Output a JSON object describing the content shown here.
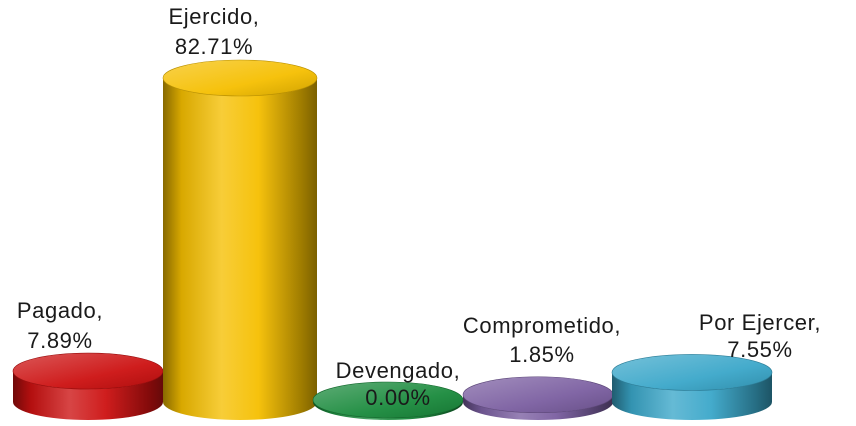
{
  "chart_data": {
    "type": "bar",
    "style": "3d-cylinder",
    "categories": [
      "Pagado",
      "Ejercido",
      "Devengado",
      "Comprometido",
      "Por Ejercer"
    ],
    "values": [
      7.89,
      82.71,
      0.0,
      1.85,
      7.55
    ],
    "data_labels": [
      {
        "name": "Pagado,",
        "value": "7.89%"
      },
      {
        "name": "Ejercido,",
        "value": "82.71%"
      },
      {
        "name": "Devengado,",
        "value": "0.00%"
      },
      {
        "name": "Comprometido,",
        "value": "1.85%"
      },
      {
        "name": "Por Ejercer,",
        "value": "7.55%"
      }
    ],
    "colors": [
      "#cc1111",
      "#f5bf00",
      "#1a8a3c",
      "#7a5ea0",
      "#3aa7c9"
    ],
    "unit": "%",
    "ylim": [
      0,
      100
    ],
    "grid": false,
    "legend": "none"
  }
}
